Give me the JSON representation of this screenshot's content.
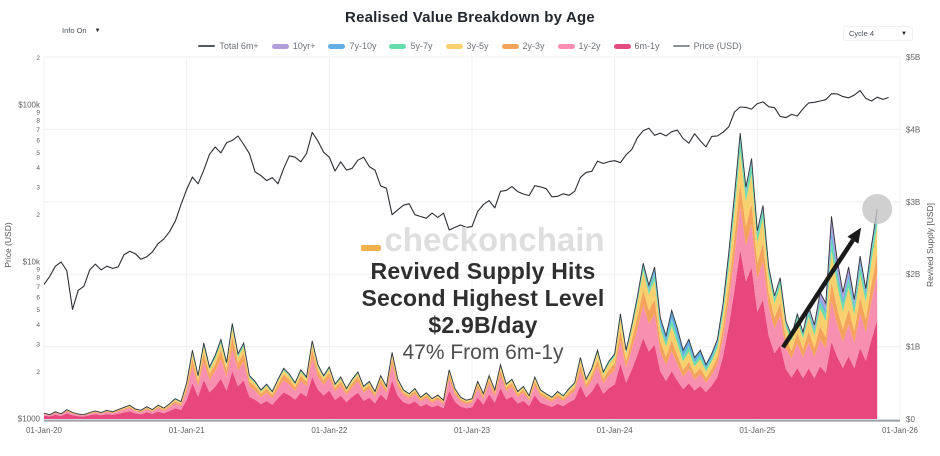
{
  "header": {
    "title": "Realised Value Breakdown by Age",
    "info_label": "Info On",
    "info_caret": "▼",
    "cycle_label": "Cycle 4",
    "cycle_caret": "▼"
  },
  "legend": {
    "items": [
      {
        "label": "Total 6m+",
        "marker": "line",
        "color": "#52575c"
      },
      {
        "label": "10yr+",
        "marker": "pill",
        "color": "#b39ddb"
      },
      {
        "label": "7y-10y",
        "marker": "pill",
        "color": "#64aee6"
      },
      {
        "label": "5y-7y",
        "marker": "pill",
        "color": "#69dcab"
      },
      {
        "label": "3y-5y",
        "marker": "pill",
        "color": "#f8d06e"
      },
      {
        "label": "2y-3y",
        "marker": "pill",
        "color": "#f3a45c"
      },
      {
        "label": "1y-2y",
        "marker": "pill",
        "color": "#f88fb2"
      },
      {
        "label": "6m-1y",
        "marker": "pill",
        "color": "#e54b80"
      },
      {
        "label": "Price (USD)",
        "marker": "line",
        "color": "#8a8f94"
      }
    ]
  },
  "axes": {
    "left": {
      "title": "Price (USD)",
      "scale": "log",
      "ticks": [
        {
          "v": 200000,
          "label": "2"
        },
        {
          "v": 100000,
          "label": "$100k"
        },
        {
          "v": 90000,
          "label": "9"
        },
        {
          "v": 80000,
          "label": "8"
        },
        {
          "v": 70000,
          "label": "7"
        },
        {
          "v": 60000,
          "label": "6"
        },
        {
          "v": 50000,
          "label": "5"
        },
        {
          "v": 40000,
          "label": "4"
        },
        {
          "v": 30000,
          "label": "3"
        },
        {
          "v": 20000,
          "label": "2"
        },
        {
          "v": 10000,
          "label": "$10k"
        },
        {
          "v": 9000,
          "label": "9"
        },
        {
          "v": 8000,
          "label": "8"
        },
        {
          "v": 7000,
          "label": "7"
        },
        {
          "v": 6000,
          "label": "6"
        },
        {
          "v": 5000,
          "label": "5"
        },
        {
          "v": 4000,
          "label": "4"
        },
        {
          "v": 3000,
          "label": "3"
        },
        {
          "v": 2000,
          "label": "2"
        },
        {
          "v": 1000,
          "label": "$1000"
        }
      ]
    },
    "right": {
      "title": "Revived Supply [USD]",
      "scale": "linear",
      "ticks": [
        {
          "v": 5,
          "label": "$5B"
        },
        {
          "v": 4,
          "label": "$4B"
        },
        {
          "v": 3,
          "label": "$3B"
        },
        {
          "v": 2,
          "label": "$2B"
        },
        {
          "v": 1,
          "label": "$1B"
        },
        {
          "v": 0,
          "label": "$0"
        }
      ]
    },
    "x": {
      "ticks": [
        {
          "t": 0,
          "label": "01-Jan-20"
        },
        {
          "t": 1,
          "label": "01-Jan-21"
        },
        {
          "t": 2,
          "label": "01-Jan-22"
        },
        {
          "t": 3,
          "label": "01-Jan-23"
        },
        {
          "t": 4,
          "label": "01-Jan-24"
        },
        {
          "t": 5,
          "label": "01-Jan-25"
        },
        {
          "t": 6,
          "label": "01-Jan-26"
        }
      ]
    }
  },
  "watermark": {
    "text": "checkonchain",
    "dash_color": "#f2b14d"
  },
  "callout": {
    "line1": "Revived Supply Hits",
    "line2": "Second Highest Level",
    "line3": "$2.9B/day",
    "line4": "47% From 6m-1y"
  },
  "chart_data": {
    "type": "area",
    "subtype": "stacked-area with log price line overlay",
    "title": "Realised Value Breakdown by Age",
    "x_start_year": 2020,
    "x_years_span": 6,
    "sample_step_years": 0.04,
    "xlim_labels": [
      "01-Jan-20",
      "01-Jan-26"
    ],
    "ylim_left_usd": [
      1000,
      200000
    ],
    "ylim_right_busd": [
      0,
      5
    ],
    "grid": {
      "h_busd": [
        1,
        2,
        3,
        4,
        5
      ],
      "v_years": [
        0,
        1,
        2,
        3,
        4,
        5,
        6
      ]
    },
    "price_line_color": "#2b2e33",
    "total_outline_color": "#30353b",
    "price_usd_k": [
      7.2,
      8.1,
      9.4,
      10.0,
      8.8,
      5.0,
      6.6,
      7.0,
      8.9,
      9.7,
      8.9,
      9.4,
      9.1,
      9.3,
      11.1,
      11.7,
      11.3,
      10.4,
      10.8,
      11.6,
      13.1,
      14.0,
      15.6,
      18.2,
      23.2,
      29.0,
      34.8,
      31.5,
      38.5,
      48.5,
      54.0,
      49.5,
      57.5,
      59.5,
      63.5,
      56.0,
      49.0,
      37.5,
      35.5,
      33.0,
      34.5,
      31.5,
      39.5,
      47.5,
      46.5,
      43.5,
      49.0,
      66.9,
      59.0,
      50.0,
      46.5,
      38.0,
      43.5,
      38.5,
      39.5,
      44.5,
      46.5,
      40.5,
      38.5,
      30.5,
      29.5,
      20.0,
      21.5,
      23.0,
      23.5,
      20.0,
      19.5,
      19.0,
      20.5,
      19.2,
      20.5,
      16.0,
      16.6,
      17.2,
      16.6,
      16.8,
      21.0,
      23.2,
      24.6,
      22.1,
      28.2,
      28.6,
      30.2,
      28.1,
      27.1,
      26.5,
      30.6,
      30.1,
      29.3,
      26.0,
      26.2,
      27.2,
      26.6,
      28.2,
      34.6,
      37.2,
      37.8,
      43.9,
      42.4,
      43.6,
      44.2,
      42.9,
      48.2,
      52.1,
      62.0,
      68.6,
      71.2,
      64.1,
      66.2,
      63.6,
      67.6,
      69.1,
      61.2,
      57.1,
      65.6,
      59.1,
      54.1,
      63.1,
      63.6,
      67.1,
      72.6,
      90.2,
      97.1,
      96.6,
      94.1,
      102.1,
      104.6,
      97.6,
      96.1,
      84.6,
      83.1,
      87.1,
      85.1,
      94.6,
      103.1,
      104.1,
      106.1,
      108.1,
      118.1,
      117.6,
      113.1,
      111.1,
      115.6,
      123.6,
      110.1,
      106.1,
      112.1,
      108.6,
      111.6
    ],
    "revived_total_busd": [
      0.08,
      0.06,
      0.1,
      0.07,
      0.13,
      0.09,
      0.07,
      0.06,
      0.09,
      0.11,
      0.09,
      0.12,
      0.1,
      0.13,
      0.16,
      0.19,
      0.14,
      0.12,
      0.17,
      0.13,
      0.19,
      0.15,
      0.21,
      0.28,
      0.24,
      0.5,
      0.95,
      0.6,
      1.05,
      0.72,
      0.88,
      1.1,
      0.78,
      1.32,
      0.9,
      1.05,
      0.6,
      0.52,
      0.4,
      0.48,
      0.38,
      0.55,
      0.7,
      0.62,
      0.5,
      0.68,
      0.58,
      1.08,
      0.75,
      0.6,
      0.72,
      0.48,
      0.58,
      0.42,
      0.55,
      0.65,
      0.45,
      0.52,
      0.38,
      0.6,
      0.45,
      0.92,
      0.55,
      0.4,
      0.35,
      0.42,
      0.3,
      0.36,
      0.28,
      0.33,
      0.26,
      0.68,
      0.42,
      0.3,
      0.26,
      0.28,
      0.52,
      0.35,
      0.6,
      0.4,
      0.75,
      0.48,
      0.55,
      0.38,
      0.45,
      0.32,
      0.58,
      0.4,
      0.35,
      0.3,
      0.38,
      0.32,
      0.42,
      0.5,
      0.85,
      0.55,
      0.7,
      0.95,
      0.65,
      0.8,
      0.9,
      1.45,
      0.95,
      1.3,
      1.7,
      2.15,
      1.85,
      2.1,
      1.4,
      1.15,
      1.5,
      1.25,
      0.95,
      1.1,
      0.85,
      0.95,
      0.75,
      0.9,
      1.1,
      1.6,
      2.3,
      3.1,
      3.95,
      3.2,
      3.6,
      2.6,
      2.95,
      2.1,
      1.7,
      1.95,
      1.35,
      1.15,
      1.45,
      1.2,
      1.55,
      1.3,
      1.75,
      1.6,
      2.8,
      2.2,
      1.75,
      2.1,
      1.65,
      2.25,
      1.8,
      2.4,
      2.9
    ],
    "bands_bottom_to_top": [
      "6m-1y",
      "1y-2y",
      "2y-3y",
      "3y-5y",
      "5y-7y",
      "7y-10y",
      "10yr+"
    ],
    "band_colors": [
      "#e8477d",
      "#f78fb0",
      "#f5a35c",
      "#f8d06e",
      "#69dcab",
      "#64aee6",
      "#b39ddb"
    ],
    "band_fraction_keyframes": [
      [
        0.0,
        0.6,
        0.24,
        0.08,
        0.05,
        0.02,
        0.005,
        0.005
      ],
      [
        1.3,
        0.5,
        0.24,
        0.12,
        0.09,
        0.03,
        0.01,
        0.01
      ],
      [
        2.5,
        0.58,
        0.24,
        0.09,
        0.06,
        0.02,
        0.005,
        0.005
      ],
      [
        3.5,
        0.56,
        0.24,
        0.1,
        0.07,
        0.02,
        0.005,
        0.005
      ],
      [
        4.2,
        0.52,
        0.21,
        0.1,
        0.12,
        0.03,
        0.01,
        0.01
      ],
      [
        4.45,
        0.42,
        0.18,
        0.1,
        0.13,
        0.07,
        0.09,
        0.01
      ],
      [
        4.9,
        0.6,
        0.15,
        0.08,
        0.11,
        0.04,
        0.01,
        0.01
      ],
      [
        5.3,
        0.48,
        0.24,
        0.1,
        0.12,
        0.04,
        0.01,
        0.01
      ],
      [
        5.52,
        0.38,
        0.2,
        0.1,
        0.15,
        0.06,
        0.04,
        0.07
      ],
      [
        5.84,
        0.47,
        0.22,
        0.1,
        0.13,
        0.05,
        0.02,
        0.01
      ]
    ],
    "annotations": {
      "arrow": {
        "from": [
          5.18,
          0.99
        ],
        "to": [
          5.67,
          2.47
        ],
        "color": "#1a1a1a"
      },
      "marker": {
        "t": 5.84,
        "v": 2.9,
        "radius": 15,
        "color": "#c4c4c4",
        "opacity": 0.8
      }
    }
  }
}
